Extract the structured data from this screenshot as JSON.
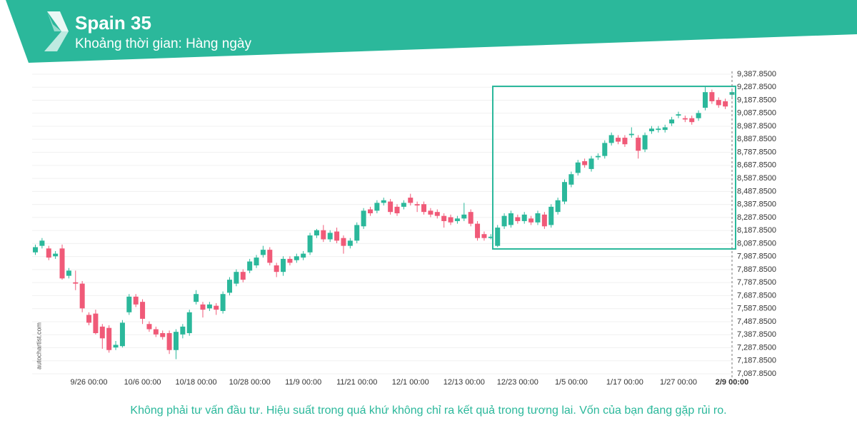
{
  "chart_data": {
    "type": "candlestick",
    "title": "Spain 35",
    "subtitle": "Khoảng thời gian: Hàng ngày",
    "note": "Không phải tư vấn đầu tư. Hiệu suất trong quá khứ không chỉ ra kết quả trong tương lai. Vốn của bạn đang gặp rủi ro.",
    "source": "autochartist.com",
    "up_color": "#2bb89b",
    "down_color": "#f05a78",
    "grid": true,
    "categories": [
      null,
      null,
      null,
      null,
      null,
      null,
      null,
      null,
      "9/26 00:00",
      null,
      null,
      null,
      null,
      null,
      null,
      null,
      "10/6 00:00",
      null,
      null,
      null,
      null,
      null,
      null,
      null,
      "10/18 00:00",
      null,
      null,
      null,
      null,
      null,
      null,
      null,
      "10/28 00:00",
      null,
      null,
      null,
      null,
      null,
      null,
      null,
      "11/9 00:00",
      null,
      null,
      null,
      null,
      null,
      null,
      null,
      "11/21 00:00",
      null,
      null,
      null,
      null,
      null,
      null,
      null,
      "12/1 00:00",
      null,
      null,
      null,
      null,
      null,
      null,
      null,
      "12/13 00:00",
      null,
      null,
      null,
      null,
      null,
      null,
      null,
      "12/23 00:00",
      null,
      null,
      null,
      null,
      null,
      null,
      null,
      "1/5 00:00",
      null,
      null,
      null,
      null,
      null,
      null,
      null,
      "1/17 00:00",
      null,
      null,
      null,
      null,
      null,
      null,
      null,
      "1/27 00:00",
      null,
      null,
      null,
      null,
      null,
      null,
      null,
      "2/9 00:00"
    ],
    "open": [
      8020,
      8070,
      8050,
      7990,
      8050,
      7840,
      7790,
      7780,
      7540,
      7550,
      7450,
      7440,
      7290,
      7300,
      7560,
      7680,
      7640,
      7470,
      7430,
      7400,
      7400,
      7270,
      7390,
      7400,
      7640,
      7620,
      7590,
      7610,
      7570,
      7710,
      7780,
      7870,
      7880,
      7920,
      8000,
      8040,
      7920,
      7870,
      7970,
      7960,
      7980,
      8020,
      8150,
      8190,
      8120,
      8180,
      8130,
      8070,
      8110,
      8220,
      8350,
      8340,
      8400,
      8410,
      8370,
      8370,
      8440,
      8390,
      8390,
      8340,
      8330,
      8300,
      8290,
      8260,
      8280,
      8330,
      8240,
      8160,
      8130,
      8070,
      8220,
      8230,
      8290,
      8260,
      8280,
      8250,
      8310,
      8230,
      8330,
      8410,
      8540,
      8630,
      8720,
      8660,
      8750,
      8760,
      8860,
      8900,
      8900,
      8920,
      8900,
      8810,
      8950,
      8960,
      8960,
      9010,
      9070,
      9050,
      9050,
      9050,
      9130,
      9250,
      9190,
      9180,
      9230
    ],
    "high": [
      8080,
      8130,
      8070,
      8030,
      8080,
      7900,
      7880,
      7800,
      7560,
      7580,
      7470,
      7460,
      7340,
      7500,
      7700,
      7700,
      7660,
      7490,
      7450,
      7420,
      7420,
      7430,
      7470,
      7580,
      7730,
      7640,
      7640,
      7630,
      7720,
      7830,
      7890,
      7890,
      7970,
      8000,
      8070,
      8060,
      7940,
      7990,
      7990,
      8010,
      8030,
      8170,
      8200,
      8230,
      8190,
      8210,
      8150,
      8130,
      8250,
      8360,
      8370,
      8420,
      8440,
      8430,
      8390,
      8420,
      8470,
      8410,
      8410,
      8360,
      8350,
      8320,
      8310,
      8300,
      8400,
      8350,
      8260,
      8180,
      8160,
      8230,
      8320,
      8340,
      8310,
      8330,
      8300,
      8340,
      8330,
      8390,
      8440,
      8580,
      8640,
      8730,
      8740,
      8760,
      8780,
      8880,
      8940,
      8920,
      8920,
      8980,
      8920,
      8940,
      8990,
      8990,
      9000,
      9060,
      9100,
      9070,
      9070,
      9110,
      9290,
      9270,
      9210,
      9200,
      9270
    ],
    "low": [
      8000,
      8050,
      7960,
      7970,
      7810,
      7820,
      7730,
      7560,
      7460,
      7390,
      7280,
      7250,
      7270,
      7290,
      7540,
      7600,
      7470,
      7410,
      7370,
      7350,
      7240,
      7200,
      7360,
      7380,
      7620,
      7520,
      7570,
      7540,
      7550,
      7690,
      7760,
      7790,
      7860,
      7900,
      7980,
      7920,
      7830,
      7840,
      7920,
      7940,
      7960,
      8000,
      8130,
      8100,
      8100,
      8090,
      8010,
      8050,
      8090,
      8200,
      8300,
      8320,
      8380,
      8310,
      8300,
      8350,
      8380,
      8330,
      8310,
      8290,
      8280,
      8210,
      8230,
      8240,
      8260,
      8220,
      8110,
      8110,
      8120,
      8060,
      8200,
      8210,
      8240,
      8240,
      8230,
      8230,
      8200,
      8210,
      8310,
      8390,
      8520,
      8610,
      8670,
      8640,
      8730,
      8740,
      8840,
      8850,
      8830,
      8900,
      8740,
      8790,
      8930,
      8940,
      8940,
      8990,
      9050,
      9020,
      9000,
      9030,
      9110,
      9160,
      9130,
      9120,
      9210
    ],
    "close": [
      8060,
      8110,
      7980,
      8010,
      7820,
      7880,
      7780,
      7590,
      7480,
      7400,
      7360,
      7270,
      7310,
      7480,
      7680,
      7620,
      7510,
      7430,
      7390,
      7370,
      7270,
      7410,
      7450,
      7560,
      7700,
      7580,
      7620,
      7580,
      7700,
      7810,
      7870,
      7810,
      7950,
      7980,
      8040,
      7940,
      7870,
      7970,
      7940,
      7990,
      8010,
      8150,
      8190,
      8120,
      8170,
      8110,
      8070,
      8110,
      8230,
      8340,
      8320,
      8400,
      8420,
      8330,
      8320,
      8400,
      8400,
      8380,
      8330,
      8310,
      8300,
      8260,
      8250,
      8280,
      8310,
      8240,
      8130,
      8130,
      8140,
      8210,
      8300,
      8320,
      8260,
      8310,
      8250,
      8320,
      8220,
      8370,
      8420,
      8560,
      8620,
      8710,
      8690,
      8740,
      8760,
      8860,
      8920,
      8870,
      8850,
      8930,
      8800,
      8920,
      8970,
      8970,
      8980,
      9040,
      9080,
      9040,
      9020,
      9090,
      9250,
      9180,
      9150,
      9140,
      9250
    ],
    "ylim": [
      7087.85,
      9387.85
    ],
    "yticks": [
      {
        "value": 9387.85,
        "label": "9,387.8500"
      },
      {
        "value": 9287.85,
        "label": "9,287.8500"
      },
      {
        "value": 9187.85,
        "label": "9,187.8500"
      },
      {
        "value": 9087.85,
        "label": "9,087.8500"
      },
      {
        "value": 8987.85,
        "label": "8,987.8500"
      },
      {
        "value": 8887.85,
        "label": "8,887.8500"
      },
      {
        "value": 8787.85,
        "label": "8,787.8500"
      },
      {
        "value": 8687.85,
        "label": "8,687.8500"
      },
      {
        "value": 8587.85,
        "label": "8,587.8500"
      },
      {
        "value": 8487.85,
        "label": "8,487.8500"
      },
      {
        "value": 8387.85,
        "label": "8,387.8500"
      },
      {
        "value": 8287.85,
        "label": "8,287.8500"
      },
      {
        "value": 8187.85,
        "label": "8,187.8500"
      },
      {
        "value": 8087.85,
        "label": "8,087.8500"
      },
      {
        "value": 7987.85,
        "label": "7,987.8500"
      },
      {
        "value": 7887.85,
        "label": "7,887.8500"
      },
      {
        "value": 7787.85,
        "label": "7,787.8500"
      },
      {
        "value": 7687.85,
        "label": "7,687.8500"
      },
      {
        "value": 7587.85,
        "label": "7,587.8500"
      },
      {
        "value": 7487.85,
        "label": "7,487.8500"
      },
      {
        "value": 7387.85,
        "label": "7,387.8500"
      },
      {
        "value": 7287.85,
        "label": "7,287.8500"
      },
      {
        "value": 7187.85,
        "label": "7,187.8500"
      },
      {
        "value": 7087.85,
        "label": "7,087.8500"
      }
    ]
  }
}
